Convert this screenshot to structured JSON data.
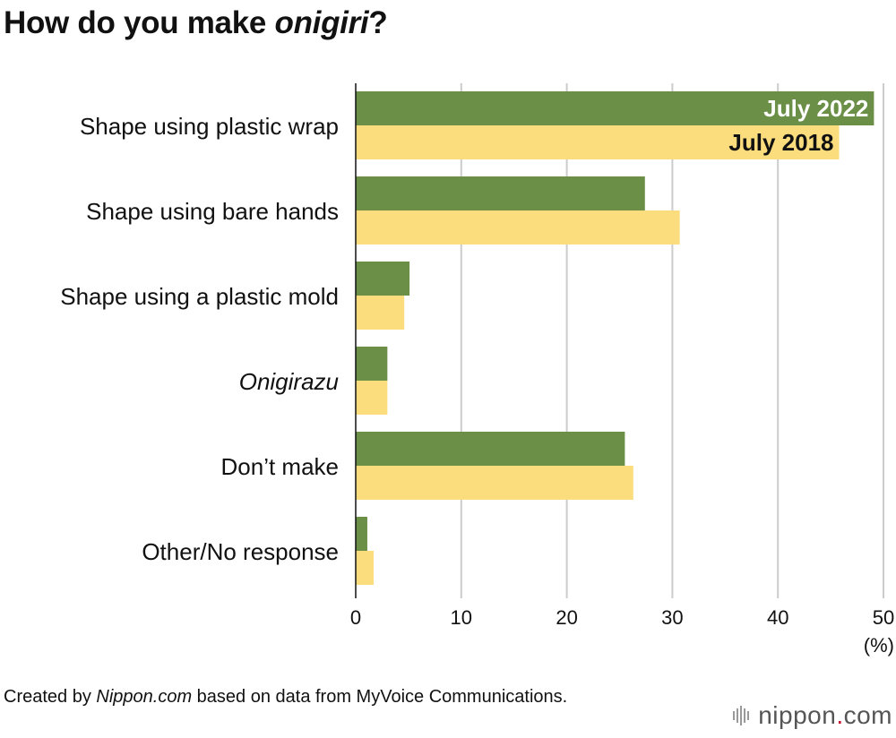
{
  "title": {
    "prefix": "How do you make ",
    "italic": "onigiri",
    "suffix": "?"
  },
  "chart_data": {
    "type": "bar",
    "orientation": "horizontal",
    "categories": [
      "Shape using plastic wrap",
      "Shape using bare hands",
      "Shape using a plastic mold",
      "Onigirazu",
      "Don’t make",
      "Other/No response"
    ],
    "italic_categories": [
      "Onigirazu"
    ],
    "series": [
      {
        "name": "July 2022",
        "color": "#6b8f47",
        "label_color": "#ffffff",
        "values": [
          49.1,
          27.4,
          5.1,
          3.0,
          25.5,
          1.1
        ]
      },
      {
        "name": "July 2018",
        "color": "#fbdd7e",
        "label_color": "#111111",
        "values": [
          45.8,
          30.7,
          4.6,
          3.0,
          26.3,
          1.7
        ]
      }
    ],
    "xlim": [
      0,
      50
    ],
    "xticks": [
      0,
      10,
      20,
      30,
      40,
      50
    ],
    "xlabel": "(%)",
    "grid": true,
    "legend": "inline labels on first category bars"
  },
  "footnote": {
    "prefix": "Created by ",
    "italic": "Nippon.com",
    "suffix": " based on data from MyVoice Communications."
  },
  "logo": {
    "name": "nippon",
    "dot": ".",
    "tld": "com"
  }
}
